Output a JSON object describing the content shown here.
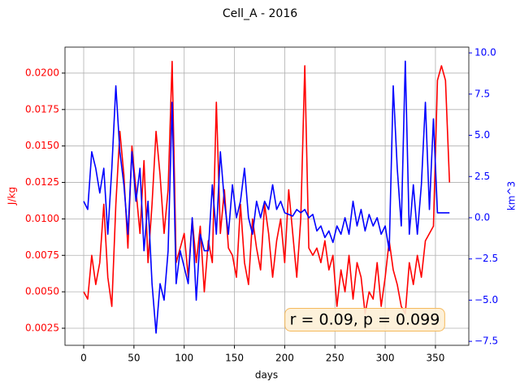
{
  "chart_data": {
    "type": "line",
    "title": "Cell_A - 2016",
    "xlabel": "days",
    "ylabel": "J/kg",
    "y2label": "km^3",
    "annotation": "r = 0.09, p = 0.099",
    "grid": true,
    "xlim": [
      -18.6,
      383.2
    ],
    "xticks": [
      0,
      50,
      100,
      150,
      200,
      250,
      300,
      350
    ],
    "ylim": [
      0.00133,
      0.02178
    ],
    "yticks": [
      0.0025,
      {
        "value": 0.005,
        "label": "0.0050"
      },
      0.0075,
      {
        "value": 0.01,
        "label": "0.0100"
      },
      0.0125,
      {
        "value": 0.015,
        "label": "0.0150"
      },
      0.0175,
      {
        "value": 0.02,
        "label": "0.0200"
      }
    ],
    "y2lim": [
      -7.74,
      10.35
    ],
    "y2ticks": [
      {
        "value": -7.5,
        "label": "−7.5"
      },
      {
        "value": -5,
        "label": "−5.0"
      },
      {
        "value": -2.5,
        "label": "−2.5"
      },
      {
        "value": 0,
        "label": "0.0"
      },
      {
        "value": 2.5,
        "label": "2.5"
      },
      {
        "value": 5,
        "label": "5.0"
      },
      {
        "value": 7.5,
        "label": "7.5"
      },
      {
        "value": 10,
        "label": "10.0"
      }
    ],
    "x": [
      0,
      4,
      8,
      12,
      16,
      20,
      24,
      28,
      32,
      36,
      40,
      44,
      48,
      52,
      56,
      60,
      64,
      68,
      72,
      76,
      80,
      84,
      88,
      92,
      96,
      100,
      104,
      108,
      112,
      116,
      120,
      124,
      128,
      132,
      136,
      140,
      144,
      148,
      152,
      156,
      160,
      164,
      168,
      172,
      176,
      180,
      184,
      188,
      192,
      196,
      200,
      204,
      208,
      212,
      216,
      220,
      224,
      228,
      232,
      236,
      240,
      244,
      248,
      252,
      256,
      260,
      264,
      268,
      272,
      276,
      280,
      284,
      288,
      292,
      296,
      300,
      304,
      308,
      312,
      316,
      320,
      324,
      328,
      332,
      336,
      340,
      344,
      348,
      352,
      356,
      360,
      364
    ],
    "series": [
      {
        "name": "J/kg",
        "color": "#ff0000",
        "axis": "y",
        "values": [
          0.005,
          0.0045,
          0.0075,
          0.0055,
          0.007,
          0.011,
          0.006,
          0.004,
          0.011,
          0.016,
          0.013,
          0.008,
          0.015,
          0.012,
          0.009,
          0.014,
          0.007,
          0.011,
          0.016,
          0.013,
          0.009,
          0.012,
          0.0208,
          0.007,
          0.008,
          0.009,
          0.006,
          0.01,
          0.007,
          0.0095,
          0.005,
          0.0085,
          0.007,
          0.018,
          0.009,
          0.012,
          0.008,
          0.0075,
          0.006,
          0.011,
          0.007,
          0.0055,
          0.01,
          0.008,
          0.0065,
          0.011,
          0.009,
          0.006,
          0.0085,
          0.01,
          0.007,
          0.012,
          0.009,
          0.006,
          0.01,
          0.0205,
          0.008,
          0.0075,
          0.008,
          0.007,
          0.0085,
          0.0065,
          0.0075,
          0.004,
          0.0065,
          0.005,
          0.0075,
          0.0045,
          0.007,
          0.006,
          0.0035,
          0.005,
          0.0045,
          0.007,
          0.004,
          0.006,
          0.0085,
          0.0065,
          0.0055,
          0.004,
          0.0035,
          0.007,
          0.0055,
          0.0075,
          0.006,
          0.0085,
          0.009,
          0.0095,
          0.0195,
          0.0205,
          0.0195,
          0.0125
        ]
      },
      {
        "name": "km^3",
        "color": "#0000ff",
        "axis": "y2",
        "values": [
          1,
          0.5,
          4,
          3,
          1.5,
          3,
          -1,
          3,
          8,
          4,
          2,
          -1,
          4,
          1,
          3,
          -2,
          1,
          -4,
          -7,
          -4,
          -5,
          -2,
          7,
          -4,
          -2,
          -3,
          -4,
          0,
          -5,
          -1,
          -2,
          -2,
          2,
          -1,
          4,
          1,
          -1,
          2,
          0,
          1,
          3,
          0,
          -1,
          1,
          0,
          1,
          0.5,
          2,
          0.5,
          1,
          0.3,
          0.2,
          0.1,
          0.5,
          0.3,
          0.5,
          0,
          0.2,
          -0.8,
          -0.5,
          -1.2,
          -0.8,
          -1.5,
          -0.5,
          -1,
          0,
          -1,
          1,
          -0.5,
          0.5,
          -0.8,
          0.2,
          -0.5,
          0,
          -1,
          -0.5,
          -2,
          8,
          3,
          -0.5,
          9.5,
          -1,
          2,
          -1,
          2,
          7,
          0.5,
          6,
          0.3,
          0.3,
          0.3,
          0.3
        ]
      }
    ]
  }
}
